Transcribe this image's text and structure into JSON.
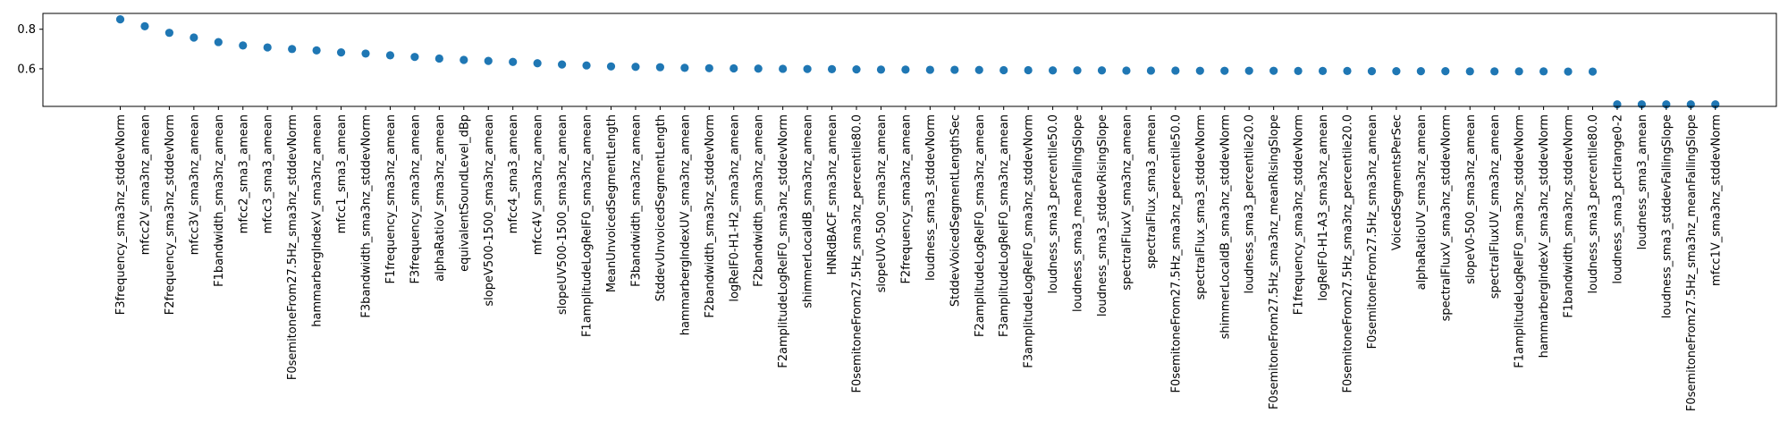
{
  "chart_data": {
    "type": "scatter",
    "title": "",
    "xlabel": "",
    "ylabel": "",
    "yticks": [
      0.6,
      0.8
    ],
    "ytick_labels": [
      "0.6",
      "0.8"
    ],
    "ylim": [
      0.41,
      0.88
    ],
    "grid": false,
    "marker_color": "#1f77b4",
    "categories": [
      "F3frequency_sma3nz_stddevNorm",
      "mfcc2V_sma3nz_amean",
      "F2frequency_sma3nz_stddevNorm",
      "mfcc3V_sma3nz_amean",
      "F1bandwidth_sma3nz_amean",
      "mfcc2_sma3_amean",
      "mfcc3_sma3_amean",
      "F0semitoneFrom27.5Hz_sma3nz_stddevNorm",
      "hammarbergIndexV_sma3nz_amean",
      "mfcc1_sma3_amean",
      "F3bandwidth_sma3nz_stddevNorm",
      "F1frequency_sma3nz_amean",
      "F3frequency_sma3nz_amean",
      "alphaRatioV_sma3nz_amean",
      "equivalentSoundLevel_dBp",
      "slopeV500-1500_sma3nz_amean",
      "mfcc4_sma3_amean",
      "mfcc4V_sma3nz_amean",
      "slopeUV500-1500_sma3nz_amean",
      "F1amplitudeLogRelF0_sma3nz_amean",
      "MeanUnvoicedSegmentLength",
      "F3bandwidth_sma3nz_amean",
      "StddevUnvoicedSegmentLength",
      "hammarbergIndexUV_sma3nz_amean",
      "F2bandwidth_sma3nz_stddevNorm",
      "logRelF0-H1-H2_sma3nz_amean",
      "F2bandwidth_sma3nz_amean",
      "F2amplitudeLogRelF0_sma3nz_stddevNorm",
      "shimmerLocaldB_sma3nz_amean",
      "HNRdBACF_sma3nz_amean",
      "F0semitoneFrom27.5Hz_sma3nz_percentile80.0",
      "slopeUV0-500_sma3nz_amean",
      "F2frequency_sma3nz_amean",
      "loudness_sma3_stddevNorm",
      "StddevVoicedSegmentLengthSec",
      "F2amplitudeLogRelF0_sma3nz_amean",
      "F3amplitudeLogRelF0_sma3nz_amean",
      "F3amplitudeLogRelF0_sma3nz_stddevNorm",
      "loudness_sma3_percentile50.0",
      "loudness_sma3_meanFallingSlope",
      "loudness_sma3_stddevRisingSlope",
      "spectralFluxV_sma3nz_amean",
      "spectralFlux_sma3_amean",
      "F0semitoneFrom27.5Hz_sma3nz_percentile50.0",
      "spectralFlux_sma3_stddevNorm",
      "shimmerLocaldB_sma3nz_stddevNorm",
      "loudness_sma3_percentile20.0",
      "F0semitoneFrom27.5Hz_sma3nz_meanRisingSlope",
      "F1frequency_sma3nz_stddevNorm",
      "logRelF0-H1-A3_sma3nz_amean",
      "F0semitoneFrom27.5Hz_sma3nz_percentile20.0",
      "F0semitoneFrom27.5Hz_sma3nz_amean",
      "VoicedSegmentsPerSec",
      "alphaRatioUV_sma3nz_amean",
      "spectralFluxV_sma3nz_stddevNorm",
      "slopeV0-500_sma3nz_amean",
      "spectralFluxUV_sma3nz_amean",
      "F1amplitudeLogRelF0_sma3nz_stddevNorm",
      "hammarbergIndexV_sma3nz_stddevNorm",
      "F1bandwidth_sma3nz_stddevNorm",
      "loudness_sma3_percentile80.0",
      "loudness_sma3_pctlrange0-2",
      "loudness_sma3_amean",
      "loudness_sma3_stddevFallingSlope",
      "F0semitoneFrom27.5Hz_sma3nz_meanFallingSlope",
      "mfcc1V_sma3nz_stddevNorm"
    ],
    "values": [
      0.85,
      0.815,
      0.782,
      0.758,
      0.735,
      0.718,
      0.708,
      0.7,
      0.693,
      0.683,
      0.677,
      0.668,
      0.66,
      0.652,
      0.645,
      0.64,
      0.635,
      0.628,
      0.622,
      0.617,
      0.612,
      0.61,
      0.608,
      0.605,
      0.603,
      0.602,
      0.601,
      0.6,
      0.599,
      0.598,
      0.597,
      0.596,
      0.596,
      0.595,
      0.595,
      0.594,
      0.593,
      0.593,
      0.592,
      0.592,
      0.592,
      0.591,
      0.591,
      0.591,
      0.59,
      0.59,
      0.59,
      0.59,
      0.589,
      0.589,
      0.589,
      0.588,
      0.588,
      0.588,
      0.588,
      0.587,
      0.587,
      0.587,
      0.587,
      0.586,
      0.586,
      0.42,
      0.42,
      0.42,
      0.42,
      0.42
    ]
  }
}
